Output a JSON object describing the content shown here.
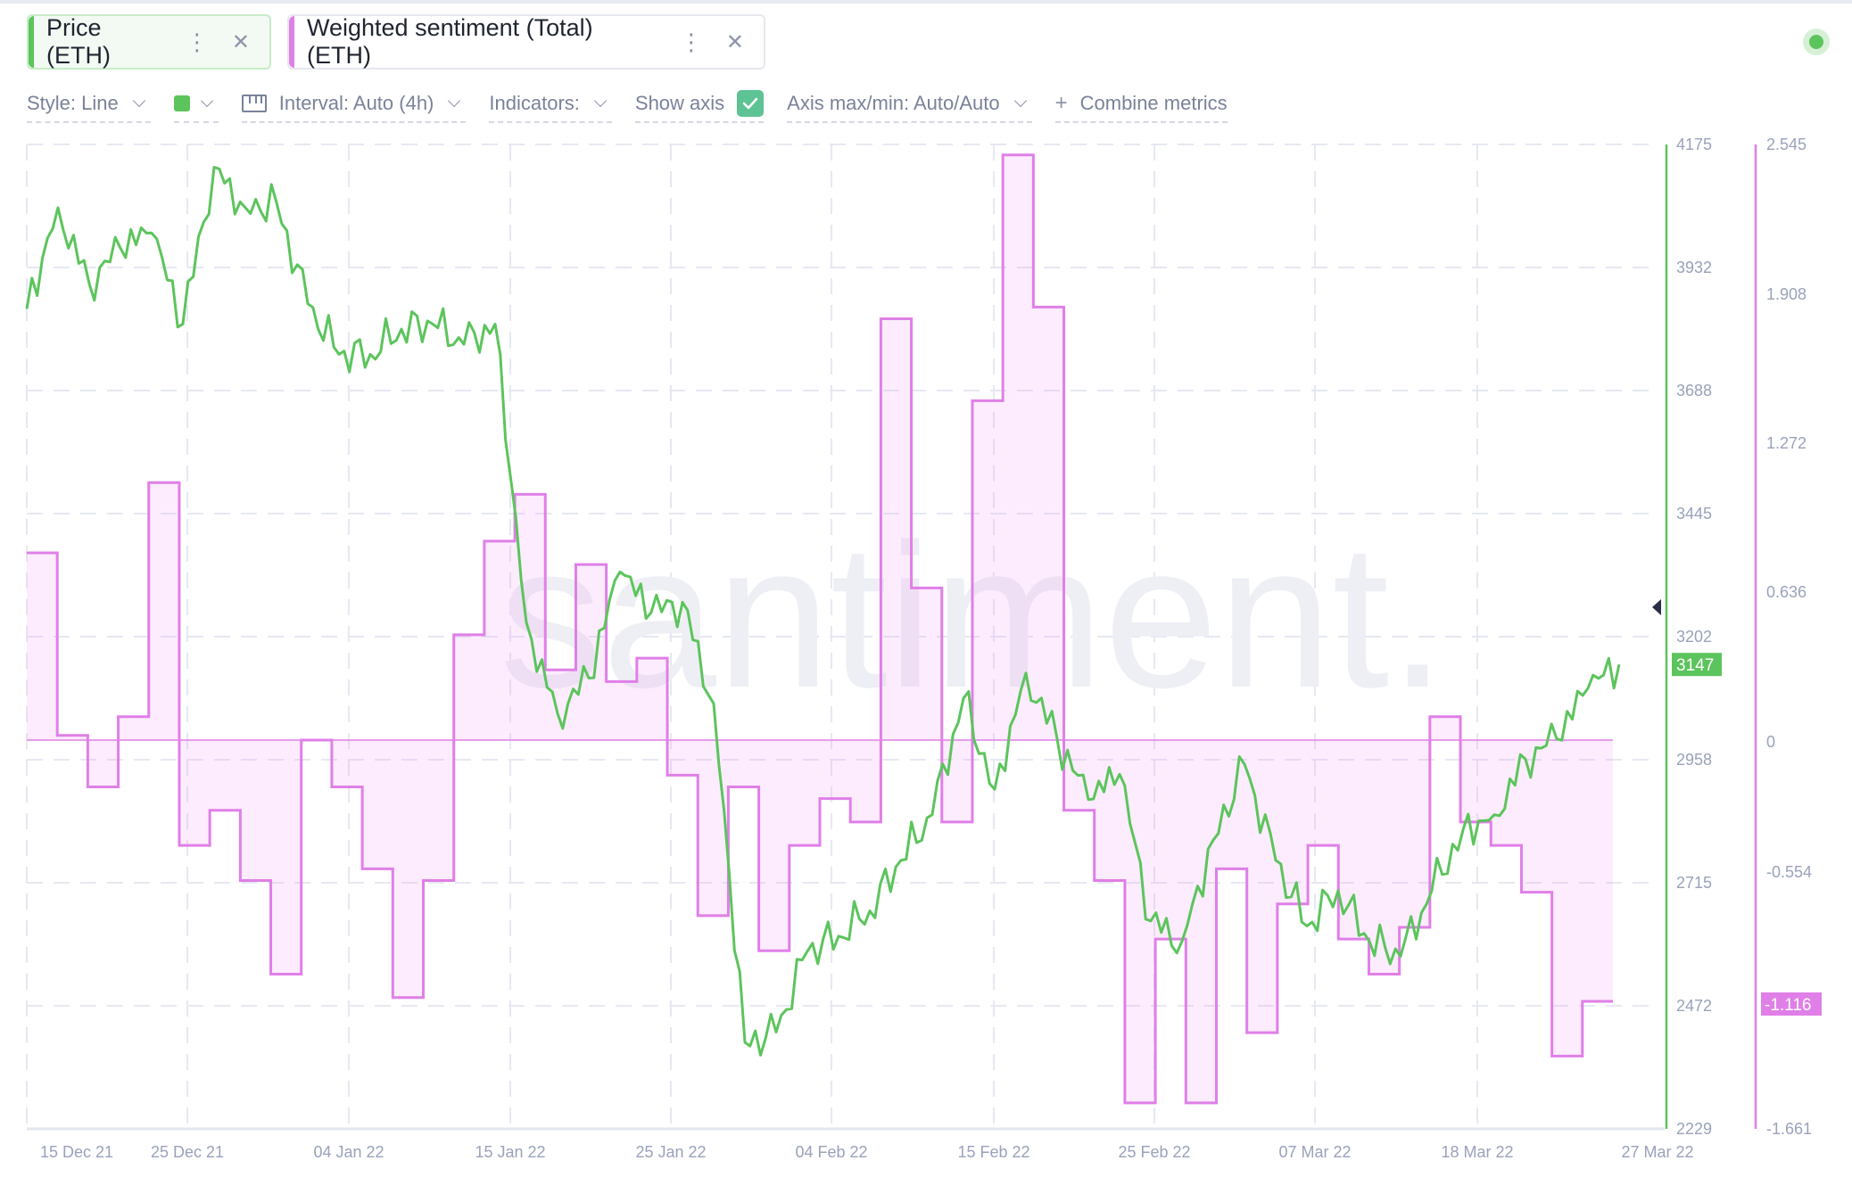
{
  "tabs": [
    {
      "label": "Price (ETH)",
      "color": "#5cc45c",
      "menu_icon": "vertical-dots-icon",
      "close_icon": "close-icon"
    },
    {
      "label": "Weighted sentiment (Total) (ETH)",
      "color": "#e07fe8",
      "menu_icon": "vertical-dots-icon",
      "close_icon": "close-icon"
    }
  ],
  "status": {
    "indicator": "online-dot",
    "color": "#5cc45c"
  },
  "toolbar": {
    "style_label": "Style: Line",
    "color_swatch": "#5cc45c",
    "interval_label": "Interval: Auto (4h)",
    "indicators_label": "Indicators:",
    "show_axis_label": "Show axis",
    "show_axis_checked": true,
    "axis_label": "Axis max/min: Auto/Auto",
    "combine_plus": "+",
    "combine_label": "Combine metrics"
  },
  "watermark": "santiment.",
  "chart_data": {
    "type": "line",
    "title": "",
    "xlabel": "",
    "ylabel": "",
    "x_ticks": [
      "15 Dec 21",
      "25 Dec 21",
      "04 Jan 22",
      "15 Jan 22",
      "25 Jan 22",
      "04 Feb 22",
      "15 Feb 22",
      "25 Feb 22",
      "07 Mar 22",
      "18 Mar 22",
      "27 Mar 22"
    ],
    "y_left": {
      "name": "Price (ETH)",
      "ticks": [
        "4175",
        "3932",
        "3688",
        "3445",
        "3202",
        "2958",
        "2715",
        "2472",
        "2229"
      ],
      "range": [
        2229,
        4175
      ],
      "current": "3147",
      "color": "#5cc45c"
    },
    "y_right": {
      "name": "Weighted sentiment (Total) (ETH)",
      "ticks": [
        "2.545",
        "1.908",
        "1.272",
        "0.636",
        "0",
        "-0.554",
        "-1.116",
        "-1.661"
      ],
      "range": [
        -1.661,
        2.545
      ],
      "current": "-1.116",
      "color": "#e07fe8"
    },
    "grid": true,
    "legend_position": "top",
    "series": [
      {
        "name": "Price (ETH)",
        "style": "line",
        "x": [
          "15 Dec 21",
          "17 Dec 21",
          "19 Dec 21",
          "21 Dec 21",
          "23 Dec 21",
          "25 Dec 21",
          "27 Dec 21",
          "29 Dec 21",
          "31 Dec 21",
          "02 Jan 22",
          "04 Jan 22",
          "06 Jan 22",
          "08 Jan 22",
          "10 Jan 22",
          "12 Jan 22",
          "14 Jan 22",
          "16 Jan 22",
          "18 Jan 22",
          "20 Jan 22",
          "22 Jan 22",
          "24 Jan 22",
          "26 Jan 22",
          "28 Jan 22",
          "30 Jan 22",
          "01 Feb 22",
          "03 Feb 22",
          "05 Feb 22",
          "07 Feb 22",
          "09 Feb 22",
          "11 Feb 22",
          "13 Feb 22",
          "15 Feb 22",
          "17 Feb 22",
          "19 Feb 22",
          "21 Feb 22",
          "23 Feb 22",
          "25 Feb 22",
          "27 Feb 22",
          "01 Mar 22",
          "03 Mar 22",
          "05 Mar 22",
          "07 Mar 22",
          "09 Mar 22",
          "11 Mar 22",
          "13 Mar 22",
          "15 Mar 22",
          "17 Mar 22",
          "19 Mar 22",
          "21 Mar 22",
          "23 Mar 22",
          "25 Mar 22",
          "27 Mar 22"
        ],
        "values": [
          3850,
          4050,
          3900,
          3970,
          4000,
          3820,
          4130,
          4050,
          4060,
          3860,
          3760,
          3760,
          3810,
          3820,
          3780,
          3820,
          3230,
          3050,
          3120,
          3330,
          3250,
          3270,
          3070,
          2400,
          2420,
          2580,
          2610,
          2660,
          2760,
          2850,
          3080,
          2900,
          3130,
          3000,
          2880,
          2930,
          2640,
          2600,
          2800,
          2950,
          2760,
          2630,
          2700,
          2600,
          2570,
          2700,
          2820,
          2850,
          2960,
          3000,
          3100,
          3147
        ]
      },
      {
        "name": "Weighted sentiment (Total) (ETH)",
        "style": "step-area",
        "x": [
          "15 Dec 21",
          "17 Dec 21",
          "19 Dec 21",
          "21 Dec 21",
          "23 Dec 21",
          "25 Dec 21",
          "27 Dec 21",
          "29 Dec 21",
          "31 Dec 21",
          "02 Jan 22",
          "04 Jan 22",
          "06 Jan 22",
          "08 Jan 22",
          "10 Jan 22",
          "12 Jan 22",
          "14 Jan 22",
          "16 Jan 22",
          "18 Jan 22",
          "20 Jan 22",
          "22 Jan 22",
          "24 Jan 22",
          "26 Jan 22",
          "28 Jan 22",
          "30 Jan 22",
          "01 Feb 22",
          "03 Feb 22",
          "05 Feb 22",
          "07 Feb 22",
          "09 Feb 22",
          "11 Feb 22",
          "13 Feb 22",
          "15 Feb 22",
          "17 Feb 22",
          "19 Feb 22",
          "21 Feb 22",
          "23 Feb 22",
          "25 Feb 22",
          "27 Feb 22",
          "01 Mar 22",
          "03 Mar 22",
          "05 Mar 22",
          "07 Mar 22",
          "09 Mar 22",
          "11 Mar 22",
          "13 Mar 22",
          "15 Mar 22",
          "17 Mar 22",
          "19 Mar 22",
          "21 Mar 22",
          "23 Mar 22",
          "25 Mar 22",
          "27 Mar 22"
        ],
        "values": [
          0.8,
          0.02,
          -0.2,
          0.1,
          1.1,
          -0.45,
          -0.3,
          -0.6,
          -1.0,
          0.0,
          -0.2,
          -0.55,
          -1.1,
          -0.6,
          0.45,
          0.85,
          1.05,
          0.3,
          0.75,
          0.25,
          0.35,
          -0.15,
          -0.75,
          -0.2,
          -0.9,
          -0.45,
          -0.25,
          -0.35,
          1.8,
          0.65,
          -0.35,
          1.45,
          2.5,
          1.85,
          -0.3,
          -0.6,
          -1.55,
          -0.85,
          -1.55,
          -0.55,
          -1.25,
          -0.7,
          -0.45,
          -0.85,
          -1.0,
          -0.8,
          0.1,
          -0.35,
          -0.45,
          -0.65,
          -1.35,
          -1.116
        ]
      }
    ]
  }
}
